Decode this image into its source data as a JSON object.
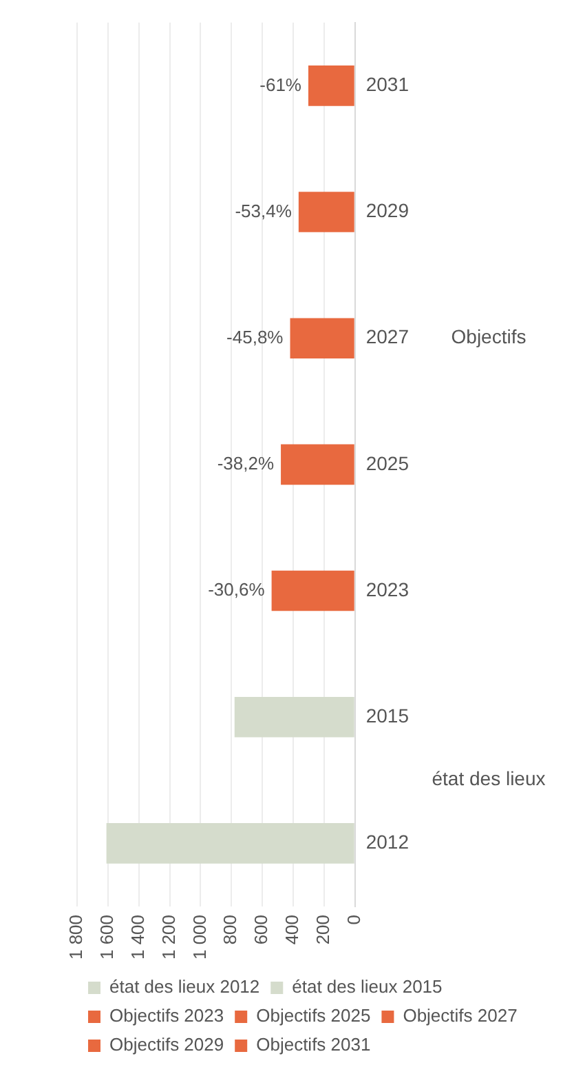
{
  "chart_data": {
    "type": "bar",
    "orientation": "horizontal",
    "categories": [
      "2031",
      "2029",
      "2027",
      "2025",
      "2023",
      "2015",
      "2012"
    ],
    "series": [
      {
        "name": "état des lieux 2012",
        "color": "#d5dccc",
        "values": [
          null,
          null,
          null,
          null,
          null,
          null,
          1610
        ]
      },
      {
        "name": "état des lieux 2015",
        "color": "#d5dccc",
        "values": [
          null,
          null,
          null,
          null,
          null,
          780,
          null
        ]
      },
      {
        "name": "Objectifs 2023",
        "color": "#e8693f",
        "values": [
          null,
          null,
          null,
          null,
          540,
          null,
          null
        ]
      },
      {
        "name": "Objectifs 2025",
        "color": "#e8693f",
        "values": [
          null,
          null,
          null,
          480,
          null,
          null,
          null
        ]
      },
      {
        "name": "Objectifs 2027",
        "color": "#e8693f",
        "values": [
          null,
          null,
          420,
          null,
          null,
          null,
          null
        ]
      },
      {
        "name": "Objectifs 2029",
        "color": "#e8693f",
        "values": [
          null,
          365,
          null,
          null,
          null,
          null,
          null
        ]
      },
      {
        "name": "Objectifs 2031",
        "color": "#e8693f",
        "values": [
          302,
          null,
          null,
          null,
          null,
          null,
          null
        ]
      }
    ],
    "annotations": [
      "Objectifs",
      "état des lieux",
      {
        "text": "-61%",
        "x": 302,
        "y": "2031"
      },
      {
        "text": "-53,4%",
        "x": 365,
        "y": "2029"
      },
      {
        "text": "-45,8%",
        "x": 420,
        "y": "2027"
      },
      {
        "text": "-38,2%",
        "x": 480,
        "y": "2025"
      },
      {
        "text": "-30,6%",
        "x": 540,
        "y": "2023"
      }
    ],
    "xlim": [
      1800,
      0
    ],
    "xticks": [
      0,
      200,
      400,
      600,
      800,
      {
        "value": 1000,
        "label": "1 000"
      },
      {
        "value": 1200,
        "label": "1 200"
      },
      {
        "value": 1400,
        "label": "1 400"
      },
      {
        "value": 1600,
        "label": "1 600"
      },
      {
        "value": 1800,
        "label": "1 800"
      }
    ],
    "grid": "x",
    "legend": "bottom"
  }
}
